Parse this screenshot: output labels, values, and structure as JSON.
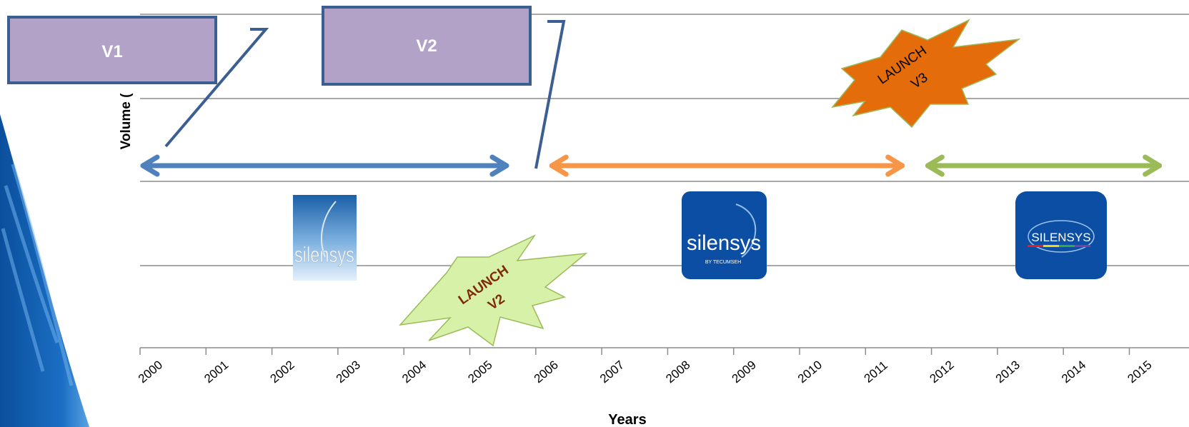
{
  "chart_data": {
    "type": "timeline",
    "xlabel": "Years",
    "ylabel": "Volume (",
    "x_ticks": [
      2000,
      2001,
      2002,
      2003,
      2004,
      2005,
      2006,
      2007,
      2008,
      2009,
      2010,
      2011,
      2012,
      2013,
      2014,
      2015
    ],
    "xlim": [
      2000,
      2015.5
    ],
    "grid": true,
    "periods": [
      {
        "start": 2000,
        "end": 2005.6,
        "color": "#4f81bd"
      },
      {
        "start": 2006.2,
        "end": 2011.6,
        "color": "#f79646"
      },
      {
        "start": 2011.9,
        "end": 2015.5,
        "color": "#9bbb59"
      }
    ],
    "version_boxes": [
      {
        "label": "V1",
        "color": "#b3a2c7"
      },
      {
        "label": "V2",
        "color": "#b3a2c7"
      }
    ],
    "bursts": [
      {
        "lines": [
          "LAUNCH",
          "V2"
        ],
        "year": 2005,
        "fill": "#d7f1a9",
        "text_color": "#7f2a0a"
      },
      {
        "lines": [
          "LAUNCH",
          "V3"
        ],
        "year": 2011,
        "fill": "#e46c0a",
        "text_color": "#000000"
      }
    ],
    "logos": [
      {
        "name": "silensys-logo-v1",
        "text": "silensys"
      },
      {
        "name": "silensys-logo-v2",
        "text": "silensys",
        "subtext": "BY TECUMSEH"
      },
      {
        "name": "silensys-logo-v3",
        "text": "SILENSYS"
      }
    ]
  }
}
